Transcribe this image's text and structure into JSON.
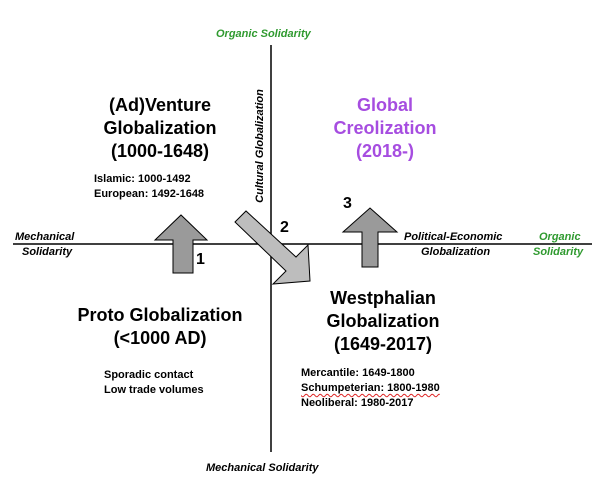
{
  "axes": {
    "top": "Organic Solidarity",
    "bottom": "Mechanical Solidarity",
    "left": [
      "Mechanical",
      "Solidarity"
    ],
    "right_axis": [
      "Political-Economic",
      "Globalization"
    ],
    "right": [
      "Organic",
      "Solidarity"
    ],
    "vertical_axis": "Cultural Globalization"
  },
  "quadrants": {
    "top_left": {
      "title": [
        "(Ad)Venture",
        "Globalization",
        "(1000-1648)"
      ],
      "details": [
        "Islamic: 1000-1492",
        "European: 1492-1648"
      ]
    },
    "top_right": {
      "title": [
        "Global",
        "Creolization",
        "(2018-)"
      ]
    },
    "bottom_left": {
      "title": [
        "Proto Globalization",
        "(<1000 AD)"
      ],
      "details": [
        "Sporadic contact",
        "Low trade volumes"
      ]
    },
    "bottom_right": {
      "title": [
        "Westphalian",
        "Globalization",
        "(1649-2017)"
      ],
      "details": [
        "Mercantile: 1649-1800",
        "Schumpeterian: 1800-1980",
        "Neoliberal: 1980-2017"
      ]
    }
  },
  "arrows": [
    {
      "label": "1",
      "direction": "up"
    },
    {
      "label": "2",
      "direction": "down-right"
    },
    {
      "label": "3",
      "direction": "up"
    }
  ],
  "colors": {
    "green": "#2f9a2f",
    "purple": "#a64de0",
    "arrow": "#9a9a9a",
    "arrow_light": "#bdbdbd"
  }
}
